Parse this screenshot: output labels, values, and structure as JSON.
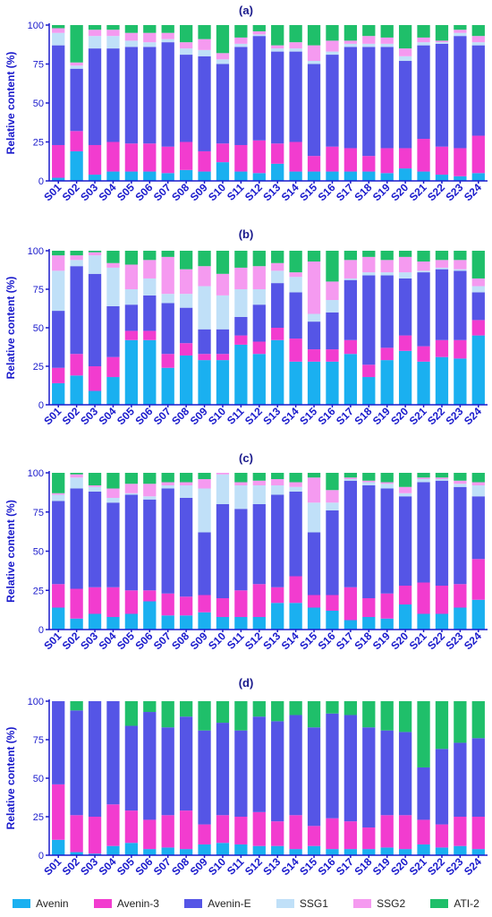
{
  "chart_data": [
    {
      "type": "bar",
      "stacked": true,
      "title": "(a)",
      "ylabel": "Relative content (%)",
      "ylim": [
        0,
        100
      ],
      "yticks": [
        "0",
        "25",
        "50",
        "75",
        "100"
      ],
      "categories": [
        "S01",
        "S02",
        "S03",
        "S04",
        "S05",
        "S06",
        "S07",
        "S08",
        "S09",
        "S10",
        "S11",
        "S12",
        "S13",
        "S14",
        "S15",
        "S16",
        "S17",
        "S18",
        "S19",
        "S20",
        "S21",
        "S22",
        "S23",
        "S24"
      ],
      "series": [
        {
          "name": "Avenin",
          "values": [
            2,
            19,
            4,
            6,
            6,
            6,
            5,
            7,
            6,
            12,
            6,
            5,
            11,
            6,
            6,
            6,
            6,
            6,
            5,
            8,
            6,
            4,
            3,
            5
          ]
        },
        {
          "name": "Avenin-3",
          "values": [
            21,
            13,
            19,
            19,
            18,
            18,
            17,
            18,
            13,
            12,
            17,
            21,
            13,
            19,
            10,
            16,
            15,
            10,
            16,
            13,
            21,
            18,
            18,
            24
          ]
        },
        {
          "name": "Avenin-E",
          "values": [
            64,
            40,
            62,
            60,
            62,
            62,
            67,
            56,
            61,
            51,
            63,
            67,
            59,
            58,
            59,
            59,
            65,
            70,
            65,
            56,
            60,
            66,
            72,
            58
          ]
        },
        {
          "name": "SSG1",
          "values": [
            8,
            2,
            8,
            8,
            4,
            3,
            2,
            4,
            4,
            3,
            2,
            1,
            2,
            2,
            2,
            2,
            2,
            2,
            2,
            3,
            2,
            1,
            2,
            2
          ]
        },
        {
          "name": "SSG2",
          "values": [
            3,
            2,
            4,
            4,
            5,
            6,
            4,
            4,
            7,
            4,
            4,
            2,
            2,
            4,
            10,
            7,
            2,
            5,
            4,
            5,
            3,
            1,
            2,
            4
          ]
        },
        {
          "name": "ATI-2",
          "values": [
            2,
            24,
            3,
            3,
            5,
            5,
            5,
            11,
            9,
            18,
            8,
            4,
            13,
            11,
            13,
            10,
            10,
            7,
            8,
            15,
            8,
            10,
            3,
            7
          ]
        }
      ]
    },
    {
      "type": "bar",
      "stacked": true,
      "title": "(b)",
      "ylabel": "Relative content (%)",
      "ylim": [
        0,
        100
      ],
      "yticks": [
        "0",
        "25",
        "50",
        "75",
        "100"
      ],
      "categories": [
        "S01",
        "S02",
        "S03",
        "S04",
        "S05",
        "S06",
        "S07",
        "S08",
        "S09",
        "S10",
        "S11",
        "S12",
        "S13",
        "S14",
        "S15",
        "S16",
        "S17",
        "S18",
        "S19",
        "S20",
        "S21",
        "S22",
        "S23",
        "S24"
      ],
      "series": [
        {
          "name": "Avenin",
          "values": [
            14,
            19,
            9,
            18,
            42,
            42,
            24,
            32,
            29,
            29,
            39,
            33,
            42,
            28,
            28,
            28,
            33,
            18,
            29,
            35,
            28,
            31,
            30,
            45
          ]
        },
        {
          "name": "Avenin-3",
          "values": [
            10,
            14,
            16,
            13,
            6,
            6,
            9,
            8,
            4,
            4,
            6,
            8,
            8,
            15,
            8,
            8,
            9,
            8,
            8,
            10,
            10,
            11,
            12,
            10
          ]
        },
        {
          "name": "Avenin-E",
          "values": [
            37,
            57,
            60,
            33,
            17,
            23,
            33,
            23,
            16,
            16,
            12,
            24,
            29,
            30,
            18,
            24,
            39,
            58,
            47,
            37,
            48,
            46,
            45,
            18
          ]
        },
        {
          "name": "SSG1",
          "values": [
            26,
            4,
            12,
            25,
            10,
            11,
            6,
            9,
            28,
            22,
            18,
            10,
            8,
            10,
            5,
            8,
            1,
            2,
            2,
            4,
            1,
            1,
            1,
            4
          ]
        },
        {
          "name": "SSG2",
          "values": [
            10,
            3,
            2,
            3,
            16,
            12,
            24,
            16,
            13,
            14,
            14,
            15,
            5,
            3,
            34,
            12,
            12,
            10,
            8,
            10,
            6,
            5,
            6,
            5
          ]
        },
        {
          "name": "ATI-2",
          "values": [
            3,
            3,
            1,
            8,
            9,
            6,
            4,
            12,
            10,
            15,
            11,
            10,
            8,
            14,
            7,
            20,
            6,
            4,
            6,
            4,
            7,
            6,
            6,
            18
          ]
        }
      ]
    },
    {
      "type": "bar",
      "stacked": true,
      "title": "(c)",
      "ylabel": "Relative content (%)",
      "ylim": [
        0,
        100
      ],
      "yticks": [
        "0",
        "25",
        "50",
        "75",
        "100"
      ],
      "categories": [
        "S01",
        "S02",
        "S03",
        "S04",
        "S05",
        "S06",
        "S07",
        "S08",
        "S09",
        "S10",
        "S11",
        "S12",
        "S13",
        "S14",
        "S15",
        "S16",
        "S17",
        "S18",
        "S19",
        "S20",
        "S21",
        "S22",
        "S23",
        "S24"
      ],
      "series": [
        {
          "name": "Avenin",
          "values": [
            14,
            7,
            10,
            8,
            10,
            18,
            9,
            9,
            11,
            8,
            8,
            8,
            17,
            17,
            14,
            12,
            6,
            8,
            7,
            16,
            10,
            10,
            14,
            19
          ]
        },
        {
          "name": "Avenin-3",
          "values": [
            15,
            19,
            17,
            19,
            15,
            7,
            14,
            12,
            11,
            12,
            17,
            21,
            10,
            17,
            8,
            10,
            21,
            12,
            16,
            12,
            20,
            18,
            15,
            26
          ]
        },
        {
          "name": "Avenin-E",
          "values": [
            53,
            64,
            61,
            54,
            61,
            58,
            67,
            63,
            40,
            60,
            52,
            51,
            59,
            54,
            40,
            54,
            68,
            72,
            67,
            57,
            64,
            67,
            62,
            40
          ]
        },
        {
          "name": "SSG1",
          "values": [
            4,
            7,
            3,
            3,
            1,
            2,
            2,
            8,
            28,
            19,
            15,
            12,
            6,
            3,
            19,
            5,
            1,
            2,
            3,
            2,
            2,
            1,
            2,
            7
          ]
        },
        {
          "name": "SSG2",
          "values": [
            1,
            2,
            1,
            6,
            6,
            8,
            2,
            2,
            6,
            1,
            2,
            3,
            4,
            3,
            16,
            8,
            1,
            1,
            1,
            4,
            1,
            1,
            2,
            2
          ]
        },
        {
          "name": "ATI-2",
          "values": [
            13,
            1,
            8,
            10,
            7,
            7,
            6,
            6,
            4,
            0,
            6,
            5,
            4,
            6,
            3,
            11,
            3,
            5,
            6,
            9,
            3,
            3,
            5,
            6
          ]
        }
      ]
    },
    {
      "type": "bar",
      "stacked": true,
      "title": "(d)",
      "ylabel": "Relative content (%)",
      "ylim": [
        0,
        100
      ],
      "yticks": [
        "0",
        "25",
        "50",
        "75",
        "100"
      ],
      "categories": [
        "S01",
        "S02",
        "S03",
        "S04",
        "S05",
        "S06",
        "S07",
        "S08",
        "S09",
        "S10",
        "S11",
        "S12",
        "S13",
        "S14",
        "S15",
        "S16",
        "S17",
        "S18",
        "S19",
        "S20",
        "S21",
        "S22",
        "S23",
        "S24"
      ],
      "series": [
        {
          "name": "Avenin",
          "values": [
            10,
            2,
            1,
            6,
            8,
            4,
            5,
            4,
            7,
            8,
            7,
            6,
            6,
            4,
            6,
            4,
            4,
            4,
            5,
            4,
            7,
            5,
            6,
            4
          ]
        },
        {
          "name": "Avenin-3",
          "values": [
            36,
            24,
            24,
            27,
            21,
            19,
            21,
            25,
            13,
            18,
            18,
            22,
            16,
            22,
            13,
            20,
            18,
            14,
            21,
            22,
            16,
            15,
            19,
            21
          ]
        },
        {
          "name": "Avenin-E",
          "values": [
            54,
            68,
            75,
            67,
            55,
            70,
            57,
            61,
            61,
            60,
            56,
            62,
            65,
            65,
            64,
            68,
            69,
            65,
            55,
            54,
            34,
            49,
            48,
            51
          ]
        },
        {
          "name": "SSG1",
          "values": [
            0,
            0,
            0,
            0,
            0,
            0,
            0,
            0,
            0,
            0,
            0,
            0,
            0,
            0,
            0,
            0,
            0,
            0,
            0,
            0,
            0,
            0,
            0,
            0
          ]
        },
        {
          "name": "SSG2",
          "values": [
            0,
            0,
            0,
            0,
            0,
            0,
            0,
            0,
            0,
            0,
            0,
            0,
            0,
            0,
            0,
            0,
            0,
            0,
            0,
            0,
            0,
            0,
            0,
            0
          ]
        },
        {
          "name": "ATI-2",
          "values": [
            0,
            6,
            0,
            0,
            16,
            7,
            17,
            10,
            19,
            14,
            19,
            10,
            13,
            9,
            17,
            8,
            9,
            17,
            19,
            20,
            43,
            31,
            27,
            24
          ]
        }
      ]
    }
  ],
  "legend": [
    {
      "name": "Avenin",
      "color": "#1ab0f0"
    },
    {
      "name": "Avenin-3",
      "color": "#f23ccf"
    },
    {
      "name": "Avenin-E",
      "color": "#5555e6"
    },
    {
      "name": "SSG1",
      "color": "#c0e0f8"
    },
    {
      "name": "SSG2",
      "color": "#f59af0"
    },
    {
      "name": "ATI-2",
      "color": "#1fbf6a"
    }
  ],
  "legend_placement": "bottom"
}
